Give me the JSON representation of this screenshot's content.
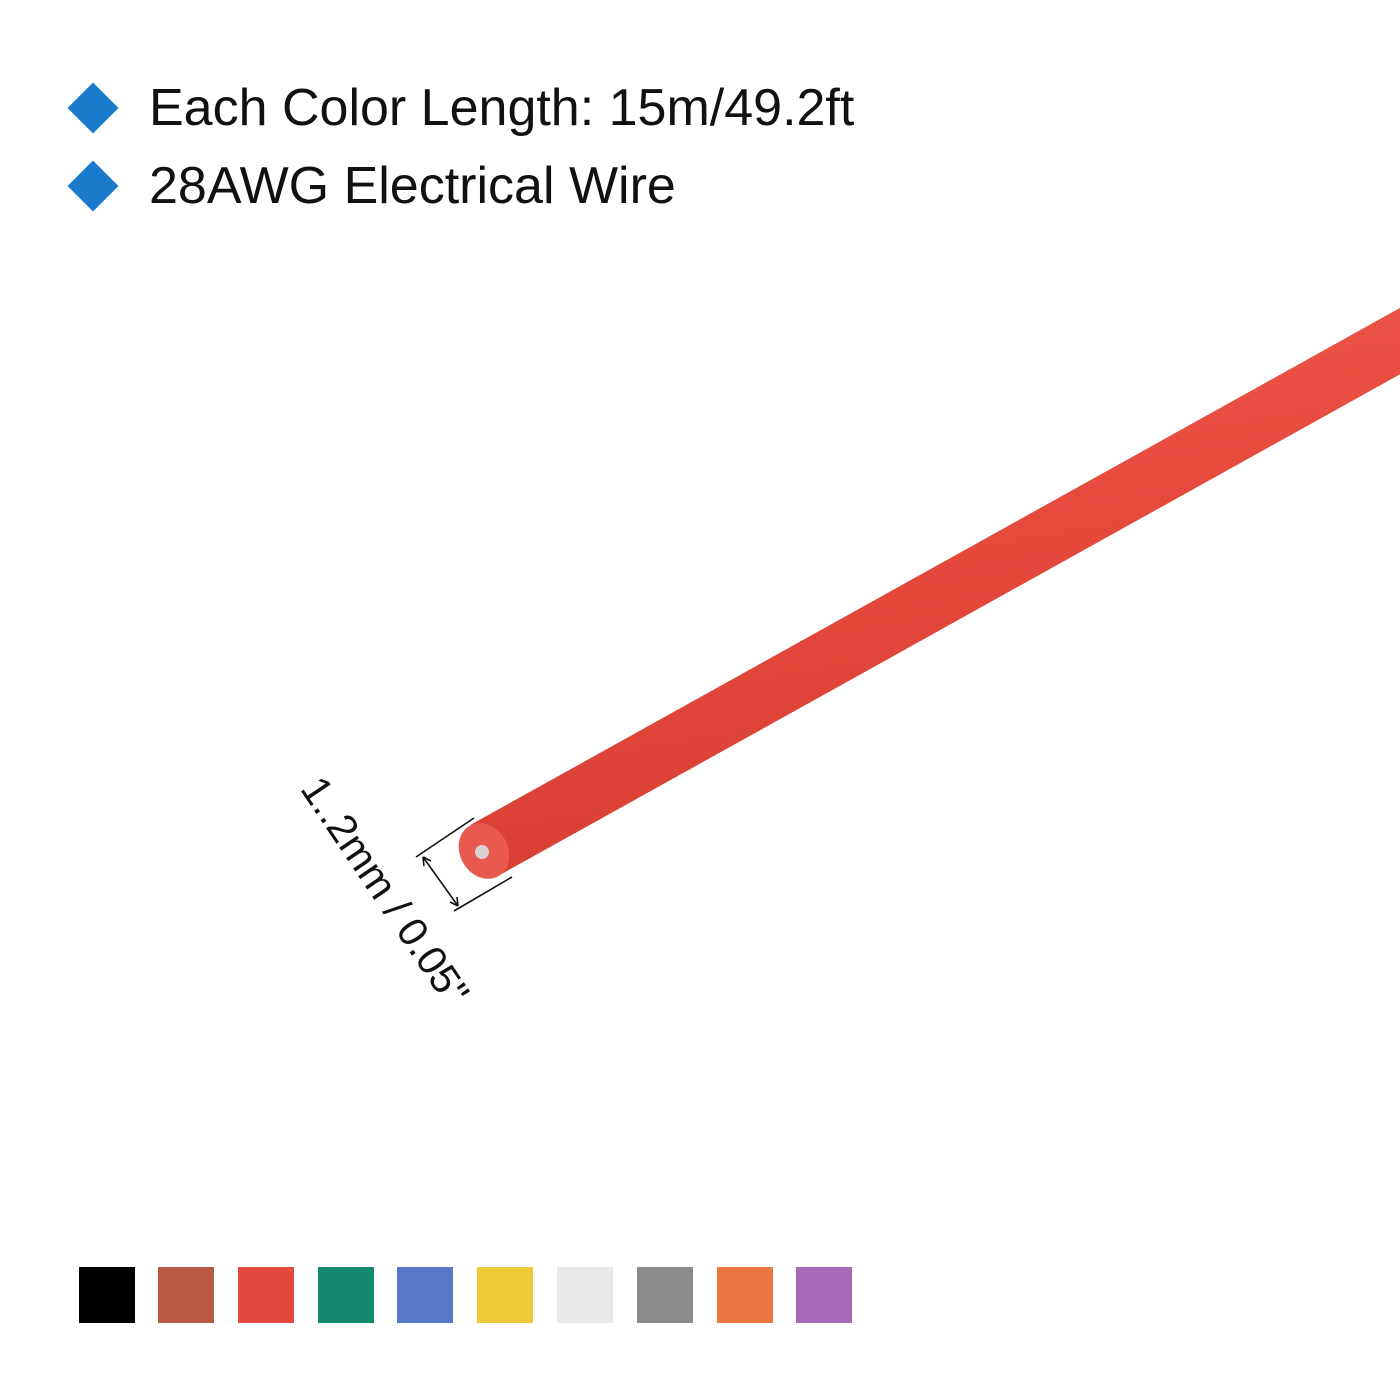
{
  "features": [
    {
      "text": "Each Color Length: 15m/49.2ft",
      "icon": "diamond-bullet-icon"
    },
    {
      "text": "28AWG Electrical Wire",
      "icon": "diamond-bullet-icon"
    }
  ],
  "bullet_color": "#1a7acb",
  "wire": {
    "color": "#e64a3d",
    "diameter_label": "1..2mm / 0.05\""
  },
  "swatches": [
    {
      "name": "black",
      "color": "#000000"
    },
    {
      "name": "brown",
      "color": "#b85a45"
    },
    {
      "name": "red",
      "color": "#e24a3e"
    },
    {
      "name": "green",
      "color": "#138970"
    },
    {
      "name": "blue",
      "color": "#5878c8"
    },
    {
      "name": "yellow",
      "color": "#eec93a"
    },
    {
      "name": "white",
      "color": "#e8e8e8"
    },
    {
      "name": "gray",
      "color": "#8a8b8c"
    },
    {
      "name": "orange",
      "color": "#ec7743"
    },
    {
      "name": "purple",
      "color": "#a869b8"
    }
  ]
}
